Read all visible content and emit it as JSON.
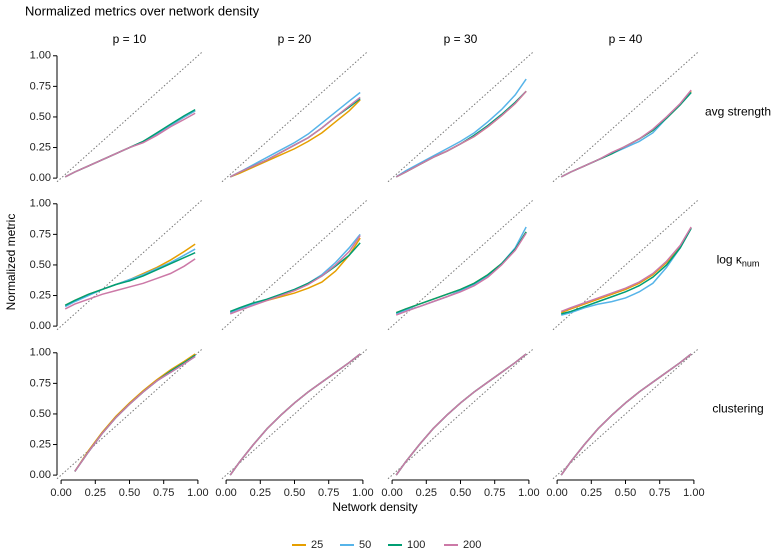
{
  "chart_data": {
    "type": "line",
    "title": "Normalized metrics over network density",
    "x_label": "Network density",
    "y_label": "Normalized metric",
    "columns": [
      "p = 10",
      "p = 20",
      "p = 30",
      "p = 40"
    ],
    "rows": [
      {
        "label": "avg strength"
      },
      {
        "label": "log κ",
        "subscript": "num"
      },
      {
        "label": "clustering"
      }
    ],
    "xlim": [
      -0.03,
      1.03
    ],
    "ylim": [
      -0.04,
      1.08
    ],
    "xticks": [
      {
        "value": 0,
        "label": "0.00"
      },
      {
        "value": 0.25,
        "label": "0.25"
      },
      {
        "value": 0.5,
        "label": "0.50"
      },
      {
        "value": 0.75,
        "label": "0.75"
      },
      {
        "value": 1,
        "label": "1.00"
      }
    ],
    "yticks": [
      {
        "value": 0,
        "label": "0.00"
      },
      {
        "value": 0.25,
        "label": "0.25"
      },
      {
        "value": 0.5,
        "label": "0.50"
      },
      {
        "value": 0.75,
        "label": "0.75"
      },
      {
        "value": 1,
        "label": "1.00"
      }
    ],
    "x": [
      0.03,
      0.1,
      0.2,
      0.3,
      0.4,
      0.5,
      0.6,
      0.7,
      0.8,
      0.9,
      0.98
    ],
    "series": [
      {
        "name": "25",
        "color": "#E69F00"
      },
      {
        "name": "50",
        "color": "#56B4E9"
      },
      {
        "name": "100",
        "color": "#009E73"
      },
      {
        "name": "200",
        "color": "#CC79A7"
      }
    ],
    "panels": [
      [
        [
          [
            0.01,
            0.05,
            0.1,
            0.15,
            0.2,
            0.25,
            0.3,
            0.36,
            0.43,
            0.5,
            0.55
          ],
          [
            0.01,
            0.05,
            0.1,
            0.15,
            0.2,
            0.25,
            0.3,
            0.36,
            0.43,
            0.5,
            0.55
          ],
          [
            0.01,
            0.05,
            0.1,
            0.15,
            0.2,
            0.25,
            0.3,
            0.37,
            0.44,
            0.51,
            0.56
          ],
          [
            0.01,
            0.05,
            0.1,
            0.15,
            0.2,
            0.25,
            0.29,
            0.35,
            0.42,
            0.48,
            0.53
          ]
        ],
        [
          [
            0.01,
            0.04,
            0.09,
            0.14,
            0.19,
            0.24,
            0.3,
            0.37,
            0.46,
            0.55,
            0.64
          ],
          [
            0.01,
            0.05,
            0.11,
            0.17,
            0.23,
            0.29,
            0.36,
            0.45,
            0.54,
            0.63,
            0.7
          ],
          [
            0.01,
            0.05,
            0.1,
            0.15,
            0.21,
            0.27,
            0.33,
            0.41,
            0.5,
            0.58,
            0.65
          ],
          [
            0.01,
            0.05,
            0.1,
            0.15,
            0.21,
            0.27,
            0.33,
            0.41,
            0.5,
            0.59,
            0.66
          ]
        ],
        [
          [
            0.01,
            0.05,
            0.11,
            0.17,
            0.22,
            0.28,
            0.34,
            0.42,
            0.51,
            0.61,
            0.71
          ],
          [
            0.01,
            0.06,
            0.12,
            0.18,
            0.24,
            0.3,
            0.37,
            0.46,
            0.56,
            0.68,
            0.81
          ],
          [
            0.01,
            0.05,
            0.11,
            0.17,
            0.22,
            0.28,
            0.35,
            0.43,
            0.52,
            0.62,
            0.71
          ],
          [
            0.01,
            0.05,
            0.11,
            0.17,
            0.22,
            0.28,
            0.34,
            0.42,
            0.51,
            0.61,
            0.71
          ]
        ],
        [
          [
            0.01,
            0.05,
            0.1,
            0.15,
            0.2,
            0.26,
            0.32,
            0.39,
            0.49,
            0.6,
            0.71
          ],
          [
            0.01,
            0.05,
            0.1,
            0.15,
            0.2,
            0.25,
            0.3,
            0.37,
            0.49,
            0.6,
            0.7
          ],
          [
            0.01,
            0.05,
            0.1,
            0.15,
            0.2,
            0.26,
            0.32,
            0.39,
            0.49,
            0.6,
            0.7
          ],
          [
            0.01,
            0.05,
            0.1,
            0.15,
            0.21,
            0.26,
            0.32,
            0.4,
            0.5,
            0.61,
            0.72
          ]
        ]
      ],
      [
        [
          [
            0.17,
            0.21,
            0.26,
            0.3,
            0.34,
            0.38,
            0.43,
            0.48,
            0.54,
            0.61,
            0.67
          ],
          [
            0.16,
            0.2,
            0.25,
            0.3,
            0.34,
            0.38,
            0.42,
            0.47,
            0.52,
            0.58,
            0.63
          ],
          [
            0.17,
            0.21,
            0.26,
            0.3,
            0.34,
            0.37,
            0.41,
            0.46,
            0.51,
            0.56,
            0.6
          ],
          [
            0.14,
            0.18,
            0.22,
            0.26,
            0.29,
            0.32,
            0.35,
            0.39,
            0.43,
            0.49,
            0.55
          ]
        ],
        [
          [
            0.11,
            0.14,
            0.18,
            0.21,
            0.24,
            0.27,
            0.31,
            0.36,
            0.45,
            0.58,
            0.72
          ],
          [
            0.11,
            0.14,
            0.18,
            0.22,
            0.26,
            0.3,
            0.35,
            0.42,
            0.52,
            0.64,
            0.75
          ],
          [
            0.12,
            0.15,
            0.19,
            0.22,
            0.26,
            0.3,
            0.35,
            0.41,
            0.49,
            0.58,
            0.68
          ],
          [
            0.1,
            0.13,
            0.17,
            0.21,
            0.25,
            0.29,
            0.34,
            0.41,
            0.5,
            0.61,
            0.74
          ]
        ],
        [
          [
            0.11,
            0.14,
            0.18,
            0.22,
            0.26,
            0.3,
            0.35,
            0.42,
            0.51,
            0.63,
            0.77
          ],
          [
            0.1,
            0.13,
            0.16,
            0.2,
            0.24,
            0.29,
            0.34,
            0.41,
            0.51,
            0.64,
            0.81
          ],
          [
            0.11,
            0.14,
            0.18,
            0.22,
            0.26,
            0.3,
            0.35,
            0.42,
            0.51,
            0.63,
            0.77
          ],
          [
            0.09,
            0.12,
            0.16,
            0.2,
            0.24,
            0.28,
            0.33,
            0.4,
            0.5,
            0.62,
            0.76
          ]
        ],
        [
          [
            0.11,
            0.14,
            0.18,
            0.22,
            0.26,
            0.3,
            0.35,
            0.42,
            0.52,
            0.65,
            0.8
          ],
          [
            0.09,
            0.11,
            0.15,
            0.18,
            0.2,
            0.23,
            0.28,
            0.35,
            0.48,
            0.64,
            0.8
          ],
          [
            0.1,
            0.12,
            0.16,
            0.2,
            0.24,
            0.28,
            0.33,
            0.4,
            0.5,
            0.64,
            0.8
          ],
          [
            0.12,
            0.15,
            0.19,
            0.23,
            0.27,
            0.31,
            0.36,
            0.43,
            0.53,
            0.66,
            0.81
          ]
        ]
      ],
      [
        [
          [
            null,
            0.03,
            0.2,
            0.35,
            0.48,
            0.59,
            0.69,
            0.78,
            0.86,
            0.93,
            0.99
          ],
          [
            null,
            0.03,
            0.19,
            0.34,
            0.47,
            0.58,
            0.68,
            0.77,
            0.84,
            0.91,
            0.97
          ],
          [
            null,
            0.03,
            0.19,
            0.34,
            0.47,
            0.58,
            0.68,
            0.77,
            0.85,
            0.92,
            0.98
          ],
          [
            null,
            0.03,
            0.19,
            0.34,
            0.47,
            0.58,
            0.68,
            0.77,
            0.84,
            0.91,
            0.97
          ]
        ],
        [
          [
            0.0,
            0.11,
            0.25,
            0.38,
            0.49,
            0.59,
            0.68,
            0.76,
            0.84,
            0.92,
            0.99
          ],
          [
            0.0,
            0.11,
            0.25,
            0.38,
            0.49,
            0.59,
            0.68,
            0.76,
            0.84,
            0.92,
            0.99
          ],
          [
            0.0,
            0.11,
            0.25,
            0.38,
            0.49,
            0.59,
            0.68,
            0.76,
            0.84,
            0.92,
            0.99
          ],
          [
            0.0,
            0.11,
            0.25,
            0.38,
            0.49,
            0.59,
            0.68,
            0.76,
            0.84,
            0.92,
            0.99
          ]
        ],
        [
          [
            0.0,
            0.11,
            0.25,
            0.38,
            0.49,
            0.59,
            0.68,
            0.76,
            0.84,
            0.92,
            0.99
          ],
          [
            0.0,
            0.11,
            0.25,
            0.38,
            0.49,
            0.59,
            0.68,
            0.76,
            0.84,
            0.92,
            0.99
          ],
          [
            0.0,
            0.11,
            0.25,
            0.38,
            0.49,
            0.59,
            0.68,
            0.76,
            0.84,
            0.92,
            0.99
          ],
          [
            0.0,
            0.11,
            0.25,
            0.38,
            0.49,
            0.59,
            0.68,
            0.76,
            0.84,
            0.92,
            0.99
          ]
        ],
        [
          [
            0.0,
            0.11,
            0.25,
            0.38,
            0.49,
            0.59,
            0.68,
            0.76,
            0.84,
            0.92,
            0.99
          ],
          [
            0.0,
            0.11,
            0.25,
            0.38,
            0.49,
            0.59,
            0.68,
            0.76,
            0.84,
            0.92,
            0.99
          ],
          [
            0.0,
            0.11,
            0.25,
            0.38,
            0.49,
            0.59,
            0.68,
            0.76,
            0.84,
            0.92,
            0.99
          ],
          [
            0.0,
            0.11,
            0.25,
            0.38,
            0.49,
            0.59,
            0.68,
            0.76,
            0.84,
            0.92,
            0.99
          ]
        ]
      ]
    ]
  }
}
